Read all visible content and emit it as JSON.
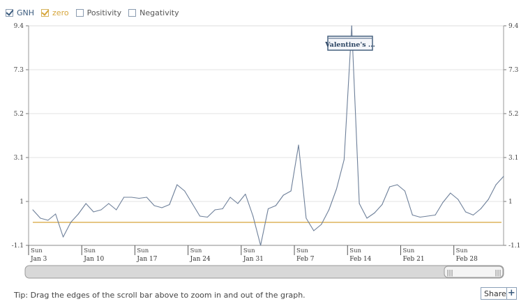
{
  "legend": [
    {
      "label": "GNH",
      "checked": true,
      "color": "#3b5b7e"
    },
    {
      "label": "zero",
      "checked": true,
      "color": "#d6a53a"
    },
    {
      "label": "Positivity",
      "checked": false,
      "color": "#555555"
    },
    {
      "label": "Negativity",
      "checked": false,
      "color": "#555555"
    }
  ],
  "tooltip": {
    "label": "Valentine's ..."
  },
  "tip": {
    "text": "Tip: Drag the edges of the scroll bar above to zoom in and out of the graph."
  },
  "share": {
    "label": "Share",
    "icon": "plus-icon"
  },
  "scrollbar": {
    "grip_left": "|||",
    "grip_right": "|||"
  },
  "chart_data": {
    "type": "line",
    "yticks": [
      "9.4",
      "7.3",
      "5.2",
      "3.1",
      "1",
      "-1.1"
    ],
    "ylim": [
      -1.1,
      9.4
    ],
    "xtick_labels": [
      {
        "day": "Sun",
        "date": "Jan 3"
      },
      {
        "day": "Sun",
        "date": "Jan 10"
      },
      {
        "day": "Sun",
        "date": "Jan 17"
      },
      {
        "day": "Sun",
        "date": "Jan 24"
      },
      {
        "day": "Sun",
        "date": "Jan 31"
      },
      {
        "day": "Sun",
        "date": "Feb 7"
      },
      {
        "day": "Sun",
        "date": "Feb 14"
      },
      {
        "day": "Sun",
        "date": "Feb 21"
      },
      {
        "day": "Sun",
        "date": "Feb 28"
      }
    ],
    "start_date": "Jan 3",
    "series": [
      {
        "name": "GNH",
        "color": "#6d7f99",
        "values": [
          0.6,
          0.2,
          0.1,
          0.4,
          -0.7,
          0.0,
          0.4,
          0.9,
          0.5,
          0.6,
          0.9,
          0.6,
          1.2,
          1.2,
          1.15,
          1.2,
          0.8,
          0.7,
          0.85,
          1.8,
          1.5,
          0.9,
          0.3,
          0.25,
          0.6,
          0.65,
          1.2,
          0.9,
          1.35,
          0.3,
          -1.1,
          0.65,
          0.8,
          1.3,
          1.5,
          3.7,
          0.2,
          -0.4,
          -0.1,
          0.6,
          1.6,
          3.0,
          9.4,
          0.9,
          0.2,
          0.45,
          0.85,
          1.7,
          1.8,
          1.5,
          0.35,
          0.25,
          0.3,
          0.35,
          0.95,
          1.4,
          1.1,
          0.5,
          0.35,
          0.65,
          1.1,
          1.8,
          2.2
        ]
      },
      {
        "name": "zero",
        "color": "#d6a53a",
        "values": [
          0
        ]
      }
    ]
  }
}
